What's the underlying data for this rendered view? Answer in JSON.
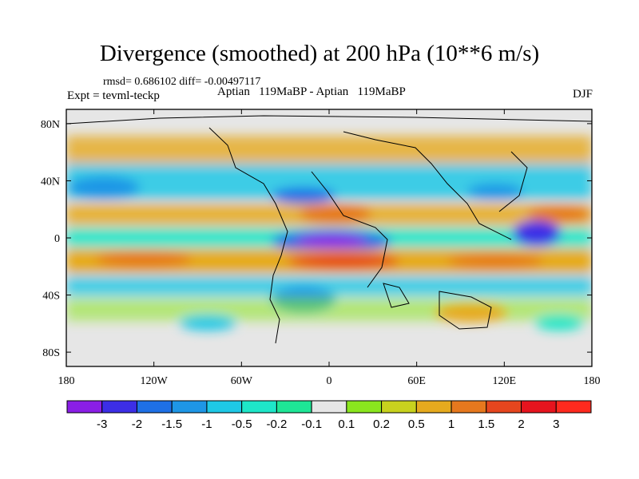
{
  "chart_data": {
    "type": "heatmap",
    "title": "Divergence (smoothed) at 200 hPa (10**6 m/s)",
    "stats_line": "rmsd= 0.686102 diff= -0.00497117",
    "experiment": "Expt = tevml-teckp",
    "center_label": "Aptian   119MaBP - Aptian   119MaBP",
    "season": "DJF",
    "x_axis": {
      "range": [
        -180,
        180
      ],
      "ticks": [
        {
          "value": -180,
          "label": "180"
        },
        {
          "value": -120,
          "label": "120W"
        },
        {
          "value": -60,
          "label": "60W"
        },
        {
          "value": 0,
          "label": "0"
        },
        {
          "value": 60,
          "label": "60E"
        },
        {
          "value": 120,
          "label": "120E"
        },
        {
          "value": 180,
          "label": "180"
        }
      ]
    },
    "y_axis": {
      "range": [
        -90,
        90
      ],
      "ticks": [
        {
          "value": 80,
          "label": "80N"
        },
        {
          "value": 40,
          "label": "40N"
        },
        {
          "value": 0,
          "label": "0"
        },
        {
          "value": -40,
          "label": "40S"
        },
        {
          "value": -80,
          "label": "80S"
        }
      ]
    },
    "colorbar": {
      "labels": [
        "-3",
        "-2",
        "-1.5",
        "-1",
        "-0.5",
        "-0.2",
        "-0.1",
        "0.1",
        "0.2",
        "0.5",
        "1",
        "1.5",
        "2",
        "3"
      ],
      "colors": [
        "#8a1ee6",
        "#3c2ee6",
        "#1e70e6",
        "#1e96e6",
        "#1ec8e6",
        "#1ee6c8",
        "#1ee696",
        "#e6e6e6",
        "#8ae61e",
        "#c8d21e",
        "#e6aa1e",
        "#e6781e",
        "#e6461e",
        "#e6141e",
        "#ff2a1e"
      ]
    },
    "features": [
      {
        "name": "equatorial-convergence-band",
        "lon": [
          -180,
          180
        ],
        "lat": [
          -25,
          -10
        ],
        "value": 1.2
      },
      {
        "name": "equatorial-divergence-center",
        "lon": [
          -20,
          30
        ],
        "lat": [
          -5,
          5
        ],
        "value": -3
      },
      {
        "name": "west-pacific-divergence",
        "lon": [
          130,
          160
        ],
        "lat": [
          -10,
          5
        ],
        "value": -2.5
      }
    ]
  }
}
